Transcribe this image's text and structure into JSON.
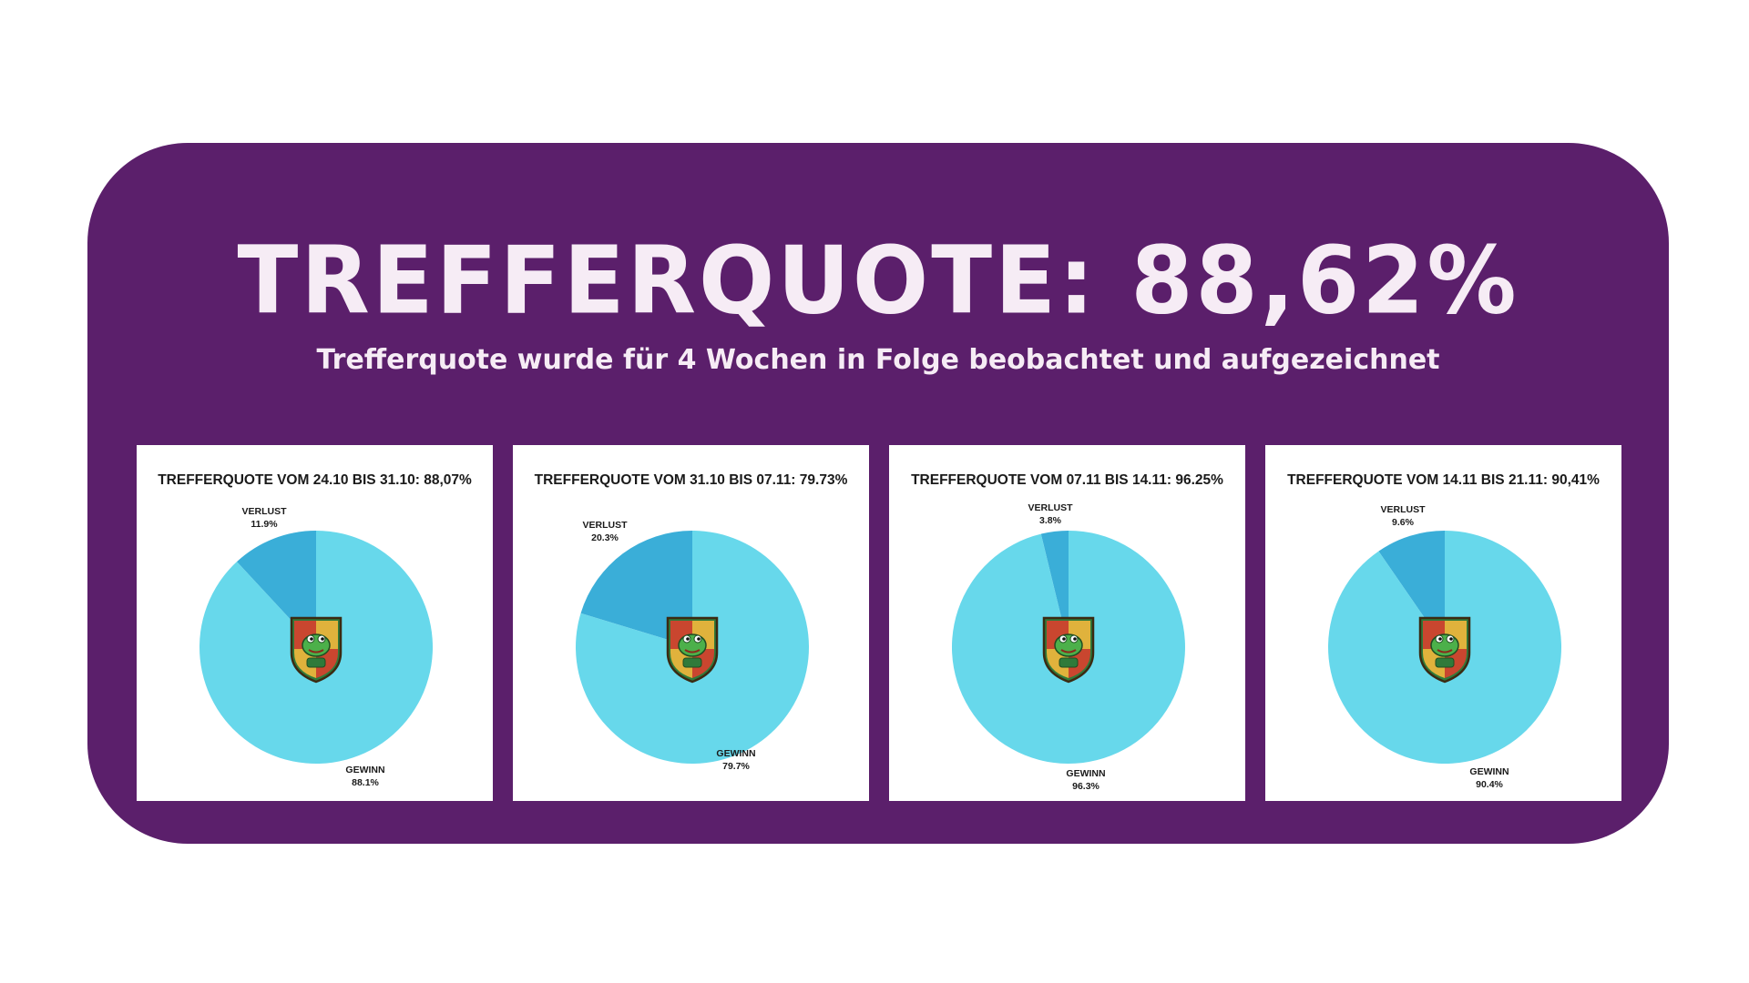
{
  "header": {
    "title": "TREFFERQUOTE: 88,62%",
    "subtitle": "Trefferquote wurde für 4 Wochen in Folge beobachtet und aufgezeichnet"
  },
  "colors": {
    "background": "#ffffff",
    "banner": "#5b1f6b",
    "text_light": "#f6ecf5",
    "gewinn": "#67d8eb",
    "verlust": "#3aaed8"
  },
  "chart_data": [
    {
      "type": "pie",
      "title": "TREFFERQUOTE VOM 24.10 BIS 31.10: 88,07%",
      "labels": [
        "VERLUST",
        "GEWINN"
      ],
      "values": [
        11.9,
        88.1
      ],
      "value_labels": [
        "11.9%",
        "88.1%"
      ],
      "center_icon": "frog-crest-icon"
    },
    {
      "type": "pie",
      "title": "TREFFERQUOTE VOM 31.10 BIS 07.11: 79.73%",
      "labels": [
        "VERLUST",
        "GEWINN"
      ],
      "values": [
        20.3,
        79.7
      ],
      "value_labels": [
        "20.3%",
        "79.7%"
      ],
      "center_icon": "frog-crest-icon"
    },
    {
      "type": "pie",
      "title": "TREFFERQUOTE VOM 07.11 BIS 14.11: 96.25%",
      "labels": [
        "VERLUST",
        "GEWINN"
      ],
      "values": [
        3.8,
        96.3
      ],
      "value_labels": [
        "3.8%",
        "96.3%"
      ],
      "center_icon": "frog-crest-icon"
    },
    {
      "type": "pie",
      "title": "TREFFERQUOTE VOM 14.11 BIS 21.11: 90,41%",
      "labels": [
        "VERLUST",
        "GEWINN"
      ],
      "values": [
        9.6,
        90.4
      ],
      "value_labels": [
        "9.6%",
        "90.4%"
      ],
      "center_icon": "frog-crest-icon"
    }
  ]
}
